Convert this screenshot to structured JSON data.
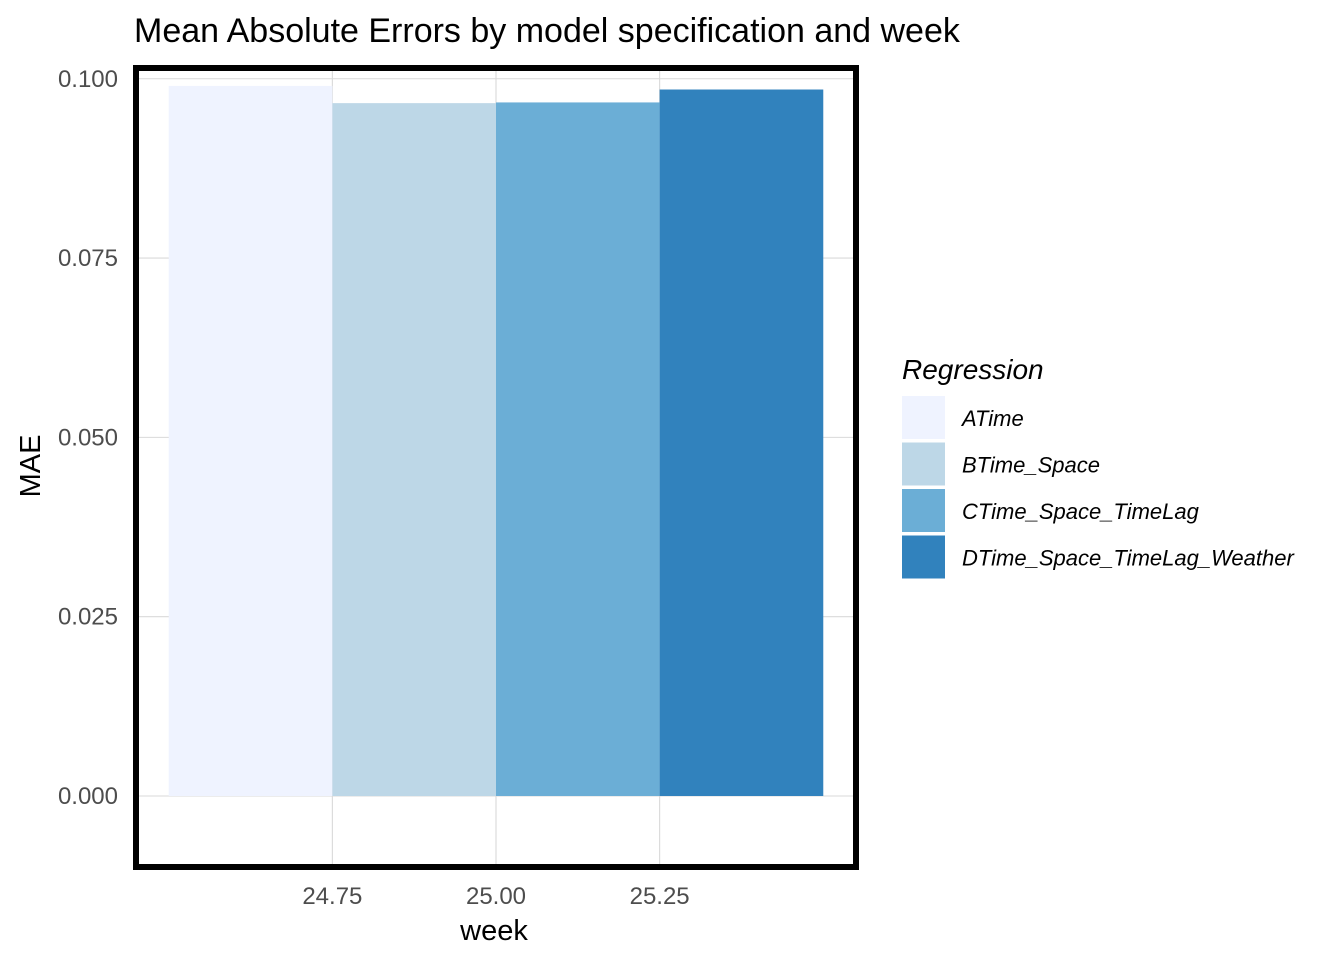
{
  "chart_data": {
    "type": "bar",
    "title": "Mean Absolute Errors by model specification and week",
    "xlabel": "week",
    "ylabel": "MAE",
    "xlim": [
      24.45,
      25.55
    ],
    "ylim": [
      -0.0099,
      0.1015
    ],
    "x_ticks": [
      24.75,
      25.0,
      25.25
    ],
    "x_tick_labels": [
      "24.75",
      "25.00",
      "25.25"
    ],
    "y_ticks": [
      0,
      0.025,
      0.05,
      0.075,
      0.1
    ],
    "y_tick_labels": [
      "0.000",
      "0.025",
      "0.050",
      "0.075",
      "0.100"
    ],
    "grid": true,
    "bar_width": 1.0,
    "week": 25,
    "position": "dodge",
    "series": [
      {
        "name": "ATime",
        "values": [
          0.099
        ],
        "color": "#eff3ff"
      },
      {
        "name": "BTime_Space",
        "values": [
          0.0966
        ],
        "color": "#bdd7e7"
      },
      {
        "name": "CTime_Space_TimeLag",
        "values": [
          0.0967
        ],
        "color": "#6baed6"
      },
      {
        "name": "DTime_Space_TimeLag_Weather",
        "values": [
          0.0985
        ],
        "color": "#3182bd"
      }
    ],
    "legend": {
      "title": "Regression",
      "position": "right"
    },
    "panel_border_color": "#000000"
  }
}
